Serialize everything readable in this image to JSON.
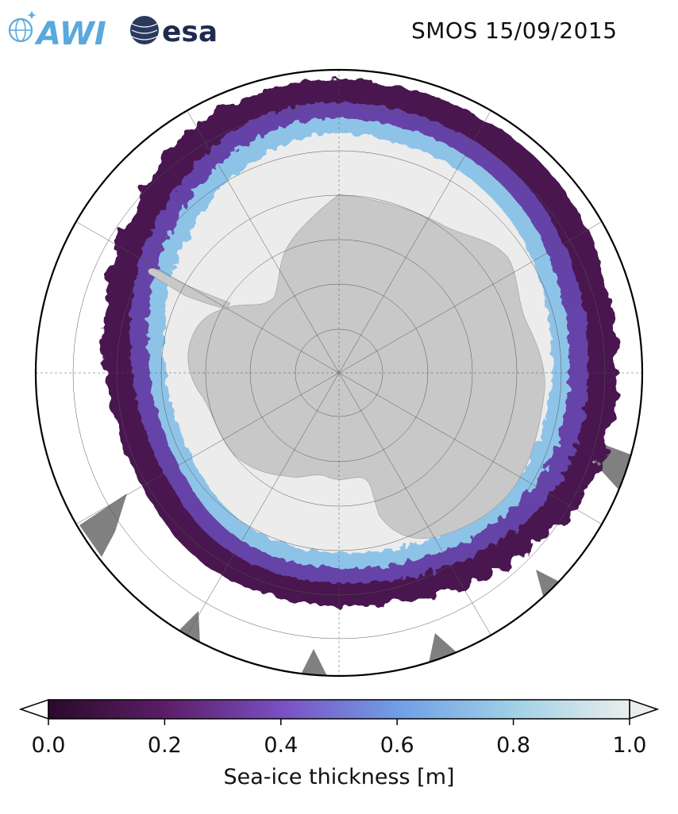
{
  "header": {
    "title": "SMOS 15/09/2015",
    "logo_awi": "AWI",
    "logo_esa": "esa"
  },
  "map": {
    "projection": "south-polar-stereographic",
    "colors": {
      "land": "#c8c8c8",
      "thick_ice": "#ececec",
      "no_data": "#808080",
      "ocean": "#ffffff",
      "grid": "#555555"
    }
  },
  "colorbar": {
    "label": "Sea-ice thickness [m]",
    "min": 0.0,
    "max": 1.0,
    "ticks": [
      "0.0",
      "0.2",
      "0.4",
      "0.6",
      "0.8",
      "1.0"
    ],
    "colormap": [
      "#2b0a2b",
      "#5b1d66",
      "#7a4fc2",
      "#6f9ee6",
      "#9fd0e6",
      "#e9eeec"
    ],
    "extend": "both"
  }
}
